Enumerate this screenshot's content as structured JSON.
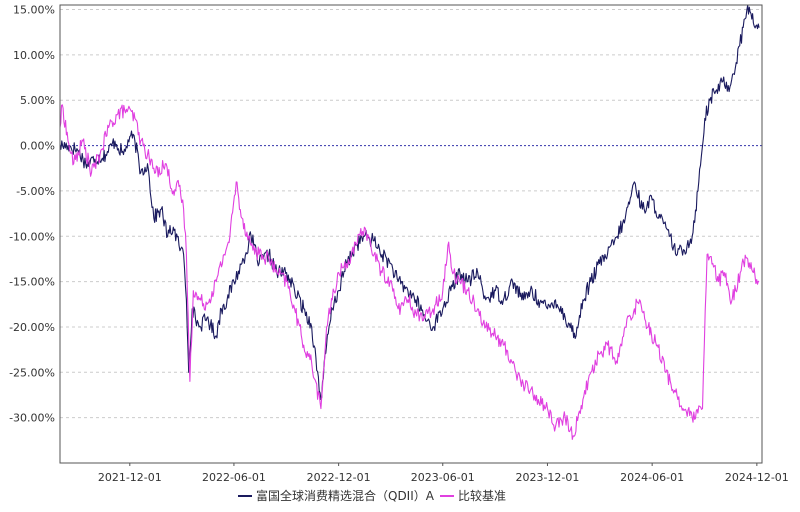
{
  "chart_data": {
    "type": "line",
    "title": "",
    "xlabel": "",
    "ylabel": "",
    "x_range": [
      "2021-08-01",
      "2024-12-10"
    ],
    "ylim": [
      -35,
      15.5
    ],
    "y_ticks": [
      15,
      10,
      5,
      0,
      -5,
      -10,
      -15,
      -20,
      -25,
      -30
    ],
    "y_tick_labels": [
      "15.00%",
      "10.00%",
      "5.00%",
      "0.00%",
      "-5.00%",
      "-10.00%",
      "-15.00%",
      "-20.00%",
      "-25.00%",
      "-30.00%"
    ],
    "x_ticks": [
      "2021-12-01",
      "2022-06-01",
      "2022-12-01",
      "2023-06-01",
      "2023-12-01",
      "2024-06-01",
      "2024-12-01"
    ],
    "x_tick_labels": [
      "2021-12-01",
      "2022-06-01",
      "2022-12-01",
      "2023-06-01",
      "2023-12-01",
      "2024-06-01",
      "2024-12-01"
    ],
    "grid": "horizontal-dashed",
    "zero_line": true,
    "legend": {
      "position": "bottom-center"
    },
    "series": [
      {
        "name": "富国全球消费精选混合（QDII）A",
        "color": "#1a1a5e",
        "points": [
          [
            "2021-08-01",
            0.0
          ],
          [
            "2021-08-15",
            0.0
          ],
          [
            "2021-09-01",
            -0.5
          ],
          [
            "2021-09-15",
            -2.0
          ],
          [
            "2021-10-01",
            -1.5
          ],
          [
            "2021-10-20",
            -1.0
          ],
          [
            "2021-11-05",
            0.5
          ],
          [
            "2021-11-20",
            -1.0
          ],
          [
            "2021-12-01",
            1.0
          ],
          [
            "2021-12-10",
            0.5
          ],
          [
            "2021-12-20",
            -3.0
          ],
          [
            "2022-01-01",
            -2.0
          ],
          [
            "2022-01-12",
            -8.0
          ],
          [
            "2022-01-25",
            -7.0
          ],
          [
            "2022-02-05",
            -10.0
          ],
          [
            "2022-02-15",
            -9.0
          ],
          [
            "2022-02-25",
            -11.0
          ],
          [
            "2022-03-05",
            -12.0
          ],
          [
            "2022-03-10",
            -17.0
          ],
          [
            "2022-03-14",
            -25.0
          ],
          [
            "2022-03-20",
            -18.0
          ],
          [
            "2022-04-01",
            -20.0
          ],
          [
            "2022-04-15",
            -19.0
          ],
          [
            "2022-05-01",
            -21.0
          ],
          [
            "2022-05-10",
            -18.0
          ],
          [
            "2022-05-20",
            -17.0
          ],
          [
            "2022-06-01",
            -15.0
          ],
          [
            "2022-06-15",
            -13.0
          ],
          [
            "2022-07-01",
            -10.0
          ],
          [
            "2022-07-15",
            -13.0
          ],
          [
            "2022-08-01",
            -12.0
          ],
          [
            "2022-08-15",
            -14.0
          ],
          [
            "2022-09-01",
            -14.0
          ],
          [
            "2022-09-15",
            -16.0
          ],
          [
            "2022-10-01",
            -18.0
          ],
          [
            "2022-10-15",
            -20.0
          ],
          [
            "2022-10-31",
            -28.0
          ],
          [
            "2022-11-10",
            -22.0
          ],
          [
            "2022-11-20",
            -18.0
          ],
          [
            "2022-12-01",
            -16.0
          ],
          [
            "2022-12-15",
            -13.0
          ],
          [
            "2023-01-01",
            -11.0
          ],
          [
            "2023-01-15",
            -10.0
          ],
          [
            "2023-02-01",
            -10.5
          ],
          [
            "2023-02-15",
            -12.0
          ],
          [
            "2023-03-01",
            -13.0
          ],
          [
            "2023-03-15",
            -15.0
          ],
          [
            "2023-04-01",
            -16.0
          ],
          [
            "2023-04-15",
            -17.0
          ],
          [
            "2023-05-01",
            -19.0
          ],
          [
            "2023-05-15",
            -20.0
          ],
          [
            "2023-06-01",
            -18.0
          ],
          [
            "2023-06-15",
            -16.0
          ],
          [
            "2023-07-01",
            -14.0
          ],
          [
            "2023-07-15",
            -15.0
          ],
          [
            "2023-08-01",
            -14.0
          ],
          [
            "2023-08-15",
            -17.0
          ],
          [
            "2023-09-01",
            -16.0
          ],
          [
            "2023-09-15",
            -17.0
          ],
          [
            "2023-10-01",
            -15.0
          ],
          [
            "2023-10-20",
            -17.0
          ],
          [
            "2023-11-01",
            -16.0
          ],
          [
            "2023-11-15",
            -17.0
          ],
          [
            "2023-12-01",
            -18.0
          ],
          [
            "2023-12-15",
            -17.0
          ],
          [
            "2024-01-01",
            -19.0
          ],
          [
            "2024-01-20",
            -21.0
          ],
          [
            "2024-02-01",
            -17.0
          ],
          [
            "2024-02-15",
            -15.0
          ],
          [
            "2024-03-01",
            -13.0
          ],
          [
            "2024-03-15",
            -12.0
          ],
          [
            "2024-04-01",
            -10.0
          ],
          [
            "2024-04-15",
            -8.0
          ],
          [
            "2024-05-01",
            -4.0
          ],
          [
            "2024-05-15",
            -7.0
          ],
          [
            "2024-06-01",
            -6.0
          ],
          [
            "2024-06-15",
            -8.0
          ],
          [
            "2024-07-01",
            -10.0
          ],
          [
            "2024-07-15",
            -12.0
          ],
          [
            "2024-08-01",
            -11.0
          ],
          [
            "2024-08-10",
            -10.0
          ],
          [
            "2024-08-20",
            -5.0
          ],
          [
            "2024-09-01",
            3.0
          ],
          [
            "2024-09-10",
            5.0
          ],
          [
            "2024-09-20",
            6.0
          ],
          [
            "2024-10-01",
            7.0
          ],
          [
            "2024-10-15",
            6.5
          ],
          [
            "2024-11-01",
            11.0
          ],
          [
            "2024-11-15",
            15.5
          ],
          [
            "2024-11-25",
            13.5
          ],
          [
            "2024-12-05",
            13.0
          ]
        ]
      },
      {
        "name": "比较基准",
        "color": "#e040e0",
        "points": [
          [
            "2021-08-01",
            2.0
          ],
          [
            "2021-08-05",
            4.5
          ],
          [
            "2021-08-15",
            0.5
          ],
          [
            "2021-08-25",
            -2.0
          ],
          [
            "2021-09-10",
            0.5
          ],
          [
            "2021-09-25",
            -3.0
          ],
          [
            "2021-10-10",
            -1.0
          ],
          [
            "2021-10-25",
            2.0
          ],
          [
            "2021-11-10",
            3.5
          ],
          [
            "2021-11-25",
            4.0
          ],
          [
            "2021-12-10",
            3.0
          ],
          [
            "2021-12-20",
            0.5
          ],
          [
            "2022-01-01",
            -1.0
          ],
          [
            "2022-01-15",
            -3.0
          ],
          [
            "2022-02-01",
            -2.0
          ],
          [
            "2022-02-15",
            -5.0
          ],
          [
            "2022-02-25",
            -4.5
          ],
          [
            "2022-03-05",
            -7.0
          ],
          [
            "2022-03-10",
            -12.0
          ],
          [
            "2022-03-16",
            -26.0
          ],
          [
            "2022-03-22",
            -16.0
          ],
          [
            "2022-04-01",
            -17.0
          ],
          [
            "2022-04-15",
            -17.5
          ],
          [
            "2022-05-01",
            -15.0
          ],
          [
            "2022-05-15",
            -12.0
          ],
          [
            "2022-05-25",
            -10.0
          ],
          [
            "2022-06-05",
            -4.0
          ],
          [
            "2022-06-15",
            -8.0
          ],
          [
            "2022-07-01",
            -11.0
          ],
          [
            "2022-07-15",
            -12.0
          ],
          [
            "2022-08-01",
            -12.5
          ],
          [
            "2022-08-15",
            -14.0
          ],
          [
            "2022-09-01",
            -15.0
          ],
          [
            "2022-09-15",
            -18.0
          ],
          [
            "2022-10-01",
            -22.0
          ],
          [
            "2022-10-15",
            -24.0
          ],
          [
            "2022-10-31",
            -29.0
          ],
          [
            "2022-11-10",
            -20.0
          ],
          [
            "2022-11-20",
            -17.0
          ],
          [
            "2022-12-01",
            -14.0
          ],
          [
            "2022-12-15",
            -13.0
          ],
          [
            "2023-01-01",
            -11.0
          ],
          [
            "2023-01-15",
            -9.0
          ],
          [
            "2023-02-01",
            -12.0
          ],
          [
            "2023-02-15",
            -14.0
          ],
          [
            "2023-03-01",
            -15.0
          ],
          [
            "2023-03-15",
            -18.0
          ],
          [
            "2023-04-01",
            -17.0
          ],
          [
            "2023-04-15",
            -18.5
          ],
          [
            "2023-05-01",
            -19.0
          ],
          [
            "2023-05-15",
            -18.0
          ],
          [
            "2023-06-01",
            -16.0
          ],
          [
            "2023-06-10",
            -11.0
          ],
          [
            "2023-06-20",
            -14.0
          ],
          [
            "2023-07-01",
            -15.0
          ],
          [
            "2023-07-15",
            -16.0
          ],
          [
            "2023-08-01",
            -18.0
          ],
          [
            "2023-08-15",
            -20.0
          ],
          [
            "2023-09-01",
            -21.0
          ],
          [
            "2023-09-15",
            -22.0
          ],
          [
            "2023-10-01",
            -24.0
          ],
          [
            "2023-10-15",
            -26.0
          ],
          [
            "2023-11-01",
            -27.0
          ],
          [
            "2023-11-15",
            -28.0
          ],
          [
            "2023-12-01",
            -29.0
          ],
          [
            "2023-12-15",
            -31.0
          ],
          [
            "2024-01-01",
            -30.0
          ],
          [
            "2024-01-15",
            -32.0
          ],
          [
            "2024-02-01",
            -28.0
          ],
          [
            "2024-02-15",
            -25.0
          ],
          [
            "2024-03-01",
            -23.0
          ],
          [
            "2024-03-15",
            -22.0
          ],
          [
            "2024-04-01",
            -24.0
          ],
          [
            "2024-04-15",
            -20.0
          ],
          [
            "2024-05-01",
            -18.0
          ],
          [
            "2024-05-10",
            -17.0
          ],
          [
            "2024-05-25",
            -20.0
          ],
          [
            "2024-06-10",
            -22.0
          ],
          [
            "2024-06-25",
            -25.0
          ],
          [
            "2024-07-10",
            -27.0
          ],
          [
            "2024-07-25",
            -29.0
          ],
          [
            "2024-08-10",
            -30.0
          ],
          [
            "2024-08-20",
            -29.5
          ],
          [
            "2024-08-28",
            -29.0
          ],
          [
            "2024-09-05",
            -12.0
          ],
          [
            "2024-09-15",
            -13.0
          ],
          [
            "2024-09-25",
            -15.0
          ],
          [
            "2024-10-05",
            -14.0
          ],
          [
            "2024-10-15",
            -17.0
          ],
          [
            "2024-10-25",
            -16.0
          ],
          [
            "2024-11-05",
            -13.0
          ],
          [
            "2024-11-15",
            -12.5
          ],
          [
            "2024-11-25",
            -14.0
          ],
          [
            "2024-12-05",
            -15.0
          ]
        ]
      }
    ]
  }
}
